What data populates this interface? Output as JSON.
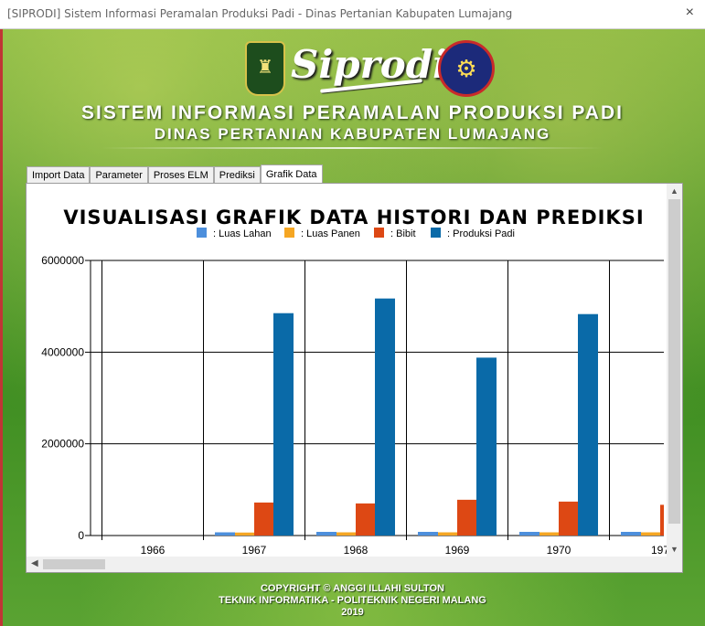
{
  "window": {
    "title": "[SIPRODI] Sistem Informasi Peramalan Produksi Padi - Dinas Pertanian Kabupaten Lumajang",
    "close_glyph": "×"
  },
  "header": {
    "logo_text": "Siprodi",
    "title_line1": "SISTEM INFORMASI PERAMALAN PRODUKSI PADI",
    "title_line2": "DINAS PERTANIAN KABUPATEN LUMAJANG",
    "left_emblem_icon": "kabupaten-lumajang-emblem",
    "right_emblem_icon": "politeknik-negeri-malang-emblem"
  },
  "tabs": [
    {
      "label": "Import Data",
      "active": false
    },
    {
      "label": "Parameter",
      "active": false
    },
    {
      "label": "Proses ELM",
      "active": false
    },
    {
      "label": "Prediksi",
      "active": false
    },
    {
      "label": "Grafik Data",
      "active": true
    }
  ],
  "chart_data": {
    "type": "bar",
    "title": "VISUALISASI GRAFIK DATA HISTORI DAN PREDIKSI",
    "categories": [
      "1966",
      "1967",
      "1968",
      "1969",
      "1970",
      "197"
    ],
    "series": [
      {
        "name": "Luas Lahan",
        "color": "#4d8fdc",
        "values": [
          0,
          70000,
          80000,
          80000,
          80000,
          80000
        ]
      },
      {
        "name": "Luas Panen",
        "color": "#f5a623",
        "values": [
          0,
          65000,
          70000,
          70000,
          70000,
          70000
        ]
      },
      {
        "name": "Bibit",
        "color": "#dd4814",
        "values": [
          0,
          720000,
          700000,
          780000,
          740000,
          670000
        ]
      },
      {
        "name": "Produksi Padi",
        "color": "#0a6aa8",
        "values": [
          0,
          4850000,
          5170000,
          3880000,
          4830000,
          null
        ]
      }
    ],
    "legend_prefix": ": ",
    "ylim": [
      0,
      6000000
    ],
    "yticks": [
      "0",
      "2000000",
      "4000000",
      "6000000"
    ],
    "ytick_values": [
      0,
      2000000,
      4000000,
      6000000
    ],
    "grid": true,
    "legend_position": "top-center"
  },
  "scroll": {
    "up_glyph": "▲",
    "down_glyph": "▼",
    "left_glyph": "◀"
  },
  "footer": {
    "line1": "COPYRIGHT © ANGGI ILLAHI SULTON",
    "line2": "TEKNIK INFORMATIKA - POLITEKNIK NEGERI MALANG",
    "line3": "2019"
  }
}
